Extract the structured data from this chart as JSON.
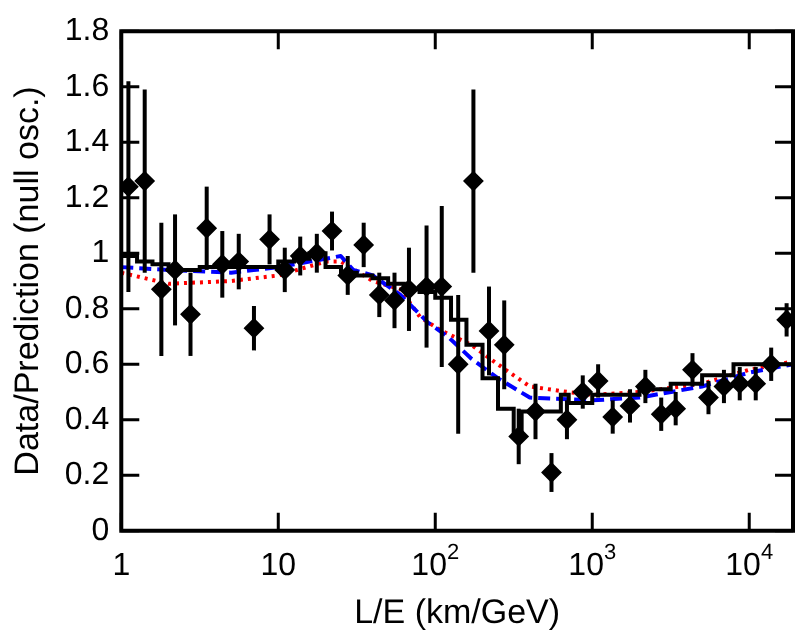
{
  "chart_data": {
    "type": "scatter",
    "xlabel": "L/E (km/GeV)",
    "ylabel": "Data/Prediction (null osc.)",
    "log": "x",
    "grid": false,
    "legend": false,
    "xlim": [
      1,
      19000
    ],
    "xticks": [
      1,
      10,
      {
        "value": 100,
        "label": "10$^{2}$"
      },
      {
        "value": 1000,
        "label": "10$^{3}$"
      },
      {
        "value": 10000,
        "label": "10$^{4}$"
      }
    ],
    "ylim": [
      0,
      1.8
    ],
    "yticks": [
      0,
      0.2,
      0.4,
      0.6,
      0.8,
      1,
      1.2,
      1.4,
      1.6,
      1.8
    ],
    "series": [
      {
        "type": "step",
        "color": "#000000",
        "line_style": "solid",
        "marker": "none",
        "x": [
          1,
          1.26,
          1.58,
          2,
          3.16,
          10,
          12.6,
          15.8,
          20,
          25.1,
          31.6,
          39.8,
          50.1,
          63.1,
          79.4,
          100,
          126,
          158,
          200,
          251,
          316,
          355,
          631,
          708,
          1000,
          2000,
          3160,
          5010,
          7940,
          12600,
          19000
        ],
        "values": [
          1.0,
          0.99,
          0.97,
          0.96,
          0.94,
          0.95,
          0.97,
          0.98,
          1.0,
          0.95,
          0.93,
          0.92,
          0.91,
          0.89,
          0.87,
          0.86,
          0.84,
          0.76,
          0.67,
          0.55,
          0.44,
          0.34,
          0.43,
          0.49,
          0.46,
          0.49,
          0.51,
          0.53,
          0.56,
          0.6,
          0.6
        ]
      },
      {
        "type": "line",
        "color": "#0000ff",
        "line_style": "dashed",
        "marker": "none",
        "x": [
          1,
          2,
          5,
          10,
          20,
          25,
          30,
          40,
          60,
          90,
          120,
          170,
          250,
          400,
          1000,
          2000,
          5000,
          10000,
          19000
        ],
        "values": [
          0.95,
          0.94,
          0.93,
          0.95,
          0.98,
          0.99,
          0.94,
          0.92,
          0.85,
          0.75,
          0.7,
          0.62,
          0.55,
          0.48,
          0.47,
          0.48,
          0.52,
          0.57,
          0.6
        ]
      },
      {
        "type": "line",
        "color": "#ff0000",
        "line_style": "dotted",
        "marker": "none",
        "x": [
          1,
          2,
          5,
          10,
          20,
          25,
          40,
          60,
          80,
          110,
          170,
          250,
          400,
          700,
          1000,
          2000,
          5000,
          10000,
          19000
        ],
        "values": [
          0.93,
          0.89,
          0.9,
          0.92,
          0.97,
          0.97,
          0.9,
          0.87,
          0.77,
          0.72,
          0.67,
          0.6,
          0.52,
          0.5,
          0.49,
          0.5,
          0.53,
          0.58,
          0.61
        ]
      },
      {
        "type": "scatter",
        "color": "#000000",
        "marker": "diamond",
        "x": [
          1.11,
          1.41,
          1.8,
          2.2,
          2.76,
          3.5,
          4.4,
          5.6,
          7.0,
          8.8,
          11,
          13.8,
          17.6,
          22,
          27.7,
          35,
          44,
          55,
          68,
          88,
          110,
          140,
          175,
          220,
          275,
          340,
          435,
          550,
          690,
          870,
          1090,
          1350,
          1740,
          2180,
          2750,
          3400,
          4350,
          5500,
          6900,
          8700,
          11000,
          13800,
          17300
        ],
        "values": [
          1.24,
          1.26,
          0.87,
          0.94,
          0.78,
          1.09,
          0.96,
          0.97,
          0.73,
          1.05,
          0.94,
          0.99,
          1.0,
          1.08,
          0.92,
          1.03,
          0.85,
          0.83,
          0.87,
          0.88,
          0.88,
          0.6,
          1.26,
          0.72,
          0.67,
          0.34,
          0.43,
          0.21,
          0.4,
          0.5,
          0.54,
          0.41,
          0.45,
          0.52,
          0.42,
          0.44,
          0.58,
          0.48,
          0.52,
          0.53,
          0.53,
          0.6,
          0.76
        ],
        "errors": [
          0.38,
          0.33,
          0.24,
          0.2,
          0.15,
          0.15,
          0.12,
          0.1,
          0.08,
          0.09,
          0.08,
          0.07,
          0.07,
          0.07,
          0.07,
          0.08,
          0.08,
          0.1,
          0.15,
          0.22,
          0.29,
          0.25,
          0.33,
          0.16,
          0.16,
          0.1,
          0.1,
          0.07,
          0.07,
          0.06,
          0.06,
          0.06,
          0.06,
          0.06,
          0.06,
          0.06,
          0.06,
          0.06,
          0.06,
          0.06,
          0.06,
          0.06,
          0.06
        ]
      }
    ]
  }
}
